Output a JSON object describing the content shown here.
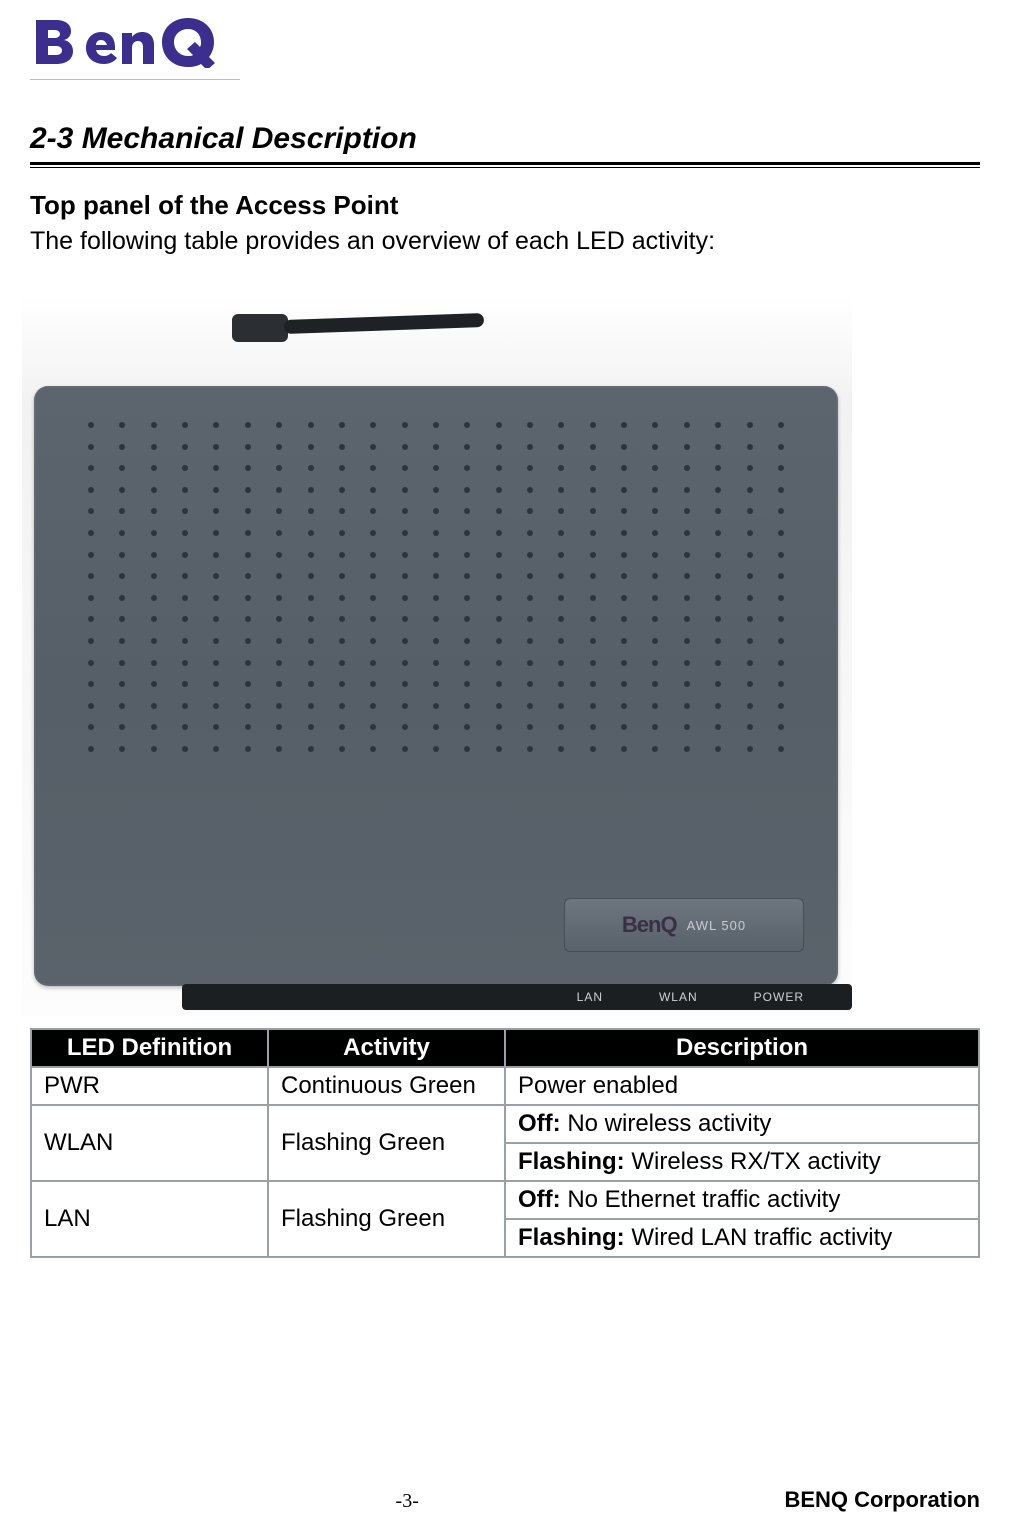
{
  "brand": {
    "name": "BenQ",
    "logo_fill": "#3b2e8f",
    "divider_color": "#bdbdbd"
  },
  "section": {
    "title": "2-3 Mechanical Description",
    "title_fontsize": 30,
    "title_style": "bold-italic",
    "rule_color": "#000000"
  },
  "content": {
    "subtitle": "Top panel of the Access Point",
    "lead": "The following table provides an overview of each LED activity:"
  },
  "device_figure": {
    "body_color": "#5a626b",
    "dot_color": "#2e343a",
    "grille_cols": 23,
    "grille_rows": 16,
    "nameplate_brand": "BenQ",
    "nameplate_model": "AWL 500",
    "ledge_labels": [
      "LAN",
      "WLAN",
      "POWER"
    ]
  },
  "led_table": {
    "header_bg": "#000000",
    "header_fg": "#ffffff",
    "border_color": "#9aa0a6",
    "columns": [
      "LED Definition",
      "Activity",
      "Description"
    ],
    "rows": [
      {
        "def": "PWR",
        "activity": "Continuous Green",
        "descriptions": [
          {
            "label": "",
            "text": "Power enabled"
          }
        ]
      },
      {
        "def": "WLAN",
        "activity": "Flashing Green",
        "descriptions": [
          {
            "label": "Off:",
            "text": " No wireless activity"
          },
          {
            "label": "Flashing:",
            "text": " Wireless RX/TX activity"
          }
        ]
      },
      {
        "def": "LAN",
        "activity": "Flashing Green",
        "descriptions": [
          {
            "label": "Off:",
            "text": " No Ethernet traffic activity"
          },
          {
            "label": "Flashing:",
            "text": " Wired LAN traffic activity"
          }
        ]
      }
    ]
  },
  "footer": {
    "page_number": "-3-",
    "corp": "BENQ Corporation"
  }
}
